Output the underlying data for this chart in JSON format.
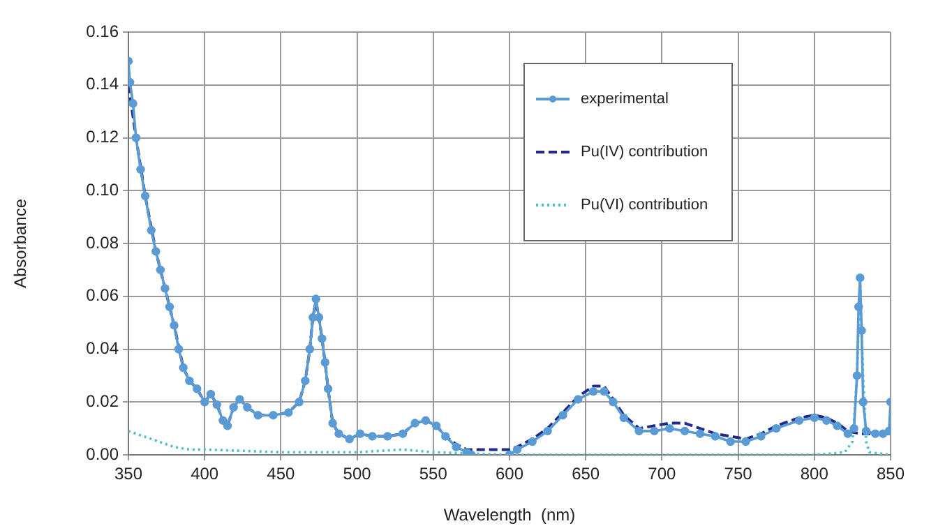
{
  "chart_data": {
    "type": "line",
    "xlabel": "Wavelength  (nm)",
    "ylabel": "Absorbance",
    "xlim": [
      350,
      850
    ],
    "xticks": [
      350,
      400,
      450,
      500,
      550,
      600,
      650,
      700,
      750,
      800,
      850
    ],
    "ylim": [
      0,
      0.16
    ],
    "yticks": [
      {
        "value": 0,
        "label": "0.00"
      },
      {
        "value": 0.02,
        "label": "0.02"
      },
      {
        "value": 0.04,
        "label": "0.04"
      },
      {
        "value": 0.06,
        "label": "0.06"
      },
      {
        "value": 0.08,
        "label": "0.08"
      },
      {
        "value": 0.1,
        "label": "0.10"
      },
      {
        "value": 0.12,
        "label": "0.12"
      },
      {
        "value": 0.14,
        "label": "0.14"
      },
      {
        "value": 0.16,
        "label": "0.16"
      }
    ],
    "grid": true,
    "legend": "top right",
    "series": [
      {
        "name": "experimental",
        "color": "#5b9bd5",
        "marker": "circle",
        "line_style": "solid",
        "x": [
          350,
          351,
          353,
          355,
          358,
          361,
          365,
          368,
          371,
          374,
          377,
          380,
          383,
          386,
          390,
          395,
          400,
          404,
          408,
          412,
          415,
          419,
          423,
          428,
          435,
          445,
          455,
          462,
          466,
          469,
          471,
          473,
          475,
          477,
          479,
          481,
          484,
          488,
          495,
          502,
          510,
          520,
          530,
          538,
          545,
          552,
          558,
          565,
          572,
          575,
          585,
          600,
          605,
          615,
          625,
          635,
          645,
          655,
          662,
          668,
          675,
          685,
          695,
          705,
          715,
          725,
          735,
          745,
          755,
          765,
          775,
          790,
          800,
          808,
          815,
          822,
          826,
          828,
          829,
          830,
          831,
          832,
          834,
          840,
          845,
          849,
          850
        ],
        "values": [
          0.149,
          0.141,
          0.133,
          0.12,
          0.108,
          0.098,
          0.085,
          0.077,
          0.07,
          0.063,
          0.056,
          0.049,
          0.04,
          0.033,
          0.028,
          0.025,
          0.02,
          0.023,
          0.019,
          0.013,
          0.011,
          0.018,
          0.021,
          0.018,
          0.015,
          0.015,
          0.016,
          0.02,
          0.028,
          0.04,
          0.052,
          0.059,
          0.052,
          0.044,
          0.035,
          0.025,
          0.012,
          0.008,
          0.006,
          0.008,
          0.007,
          0.007,
          0.008,
          0.012,
          0.013,
          0.011,
          0.007,
          0.003,
          0.001,
          0,
          null,
          0,
          0.002,
          0.005,
          0.009,
          0.015,
          0.021,
          0.024,
          0.024,
          0.02,
          0.014,
          0.009,
          0.009,
          0.01,
          0.009,
          0.008,
          0.007,
          0.005,
          0.005,
          0.007,
          0.01,
          0.013,
          0.014,
          0.013,
          0.011,
          0.008,
          0.01,
          0.03,
          0.056,
          0.067,
          0.047,
          0.02,
          0.009,
          0.008,
          0.008,
          0.009,
          0.02
        ]
      },
      {
        "name": "Pu(IV) contribution",
        "color": "#1f2a8c",
        "marker": "none",
        "line_style": "dashed",
        "x": [
          350,
          355,
          361,
          368,
          374,
          380,
          386,
          390,
          395,
          400,
          404,
          408,
          412,
          415,
          419,
          423,
          428,
          435,
          445,
          455,
          462,
          466,
          469,
          471,
          473,
          475,
          477,
          479,
          481,
          484,
          488,
          495,
          502,
          510,
          520,
          530,
          538,
          545,
          552,
          558,
          565,
          572,
          580,
          590,
          600,
          605,
          615,
          625,
          635,
          645,
          655,
          662,
          668,
          675,
          685,
          695,
          705,
          715,
          725,
          735,
          745,
          755,
          765,
          775,
          790,
          800,
          808,
          815,
          822,
          830,
          840,
          850
        ],
        "values": [
          0.14,
          0.12,
          0.098,
          0.077,
          0.063,
          0.049,
          0.033,
          0.028,
          0.025,
          0.02,
          0.023,
          0.019,
          0.013,
          0.011,
          0.018,
          0.021,
          0.018,
          0.015,
          0.015,
          0.016,
          0.02,
          0.028,
          0.04,
          0.052,
          0.058,
          0.052,
          0.044,
          0.035,
          0.025,
          0.012,
          0.008,
          0.006,
          0.008,
          0.007,
          0.007,
          0.008,
          0.012,
          0.013,
          0.011,
          0.007,
          0.004,
          0.002,
          0.002,
          0.002,
          0.002,
          0.003,
          0.006,
          0.01,
          0.016,
          0.022,
          0.026,
          0.026,
          0.021,
          0.015,
          0.01,
          0.011,
          0.012,
          0.012,
          0.01,
          0.008,
          0.007,
          0.006,
          0.008,
          0.011,
          0.014,
          0.015,
          0.014,
          0.012,
          0.009,
          0.008,
          0.008,
          0.008
        ]
      },
      {
        "name": "Pu(VI) contribution",
        "color": "#4dbfc6",
        "marker": "none",
        "line_style": "dotted",
        "x": [
          350,
          360,
          370,
          380,
          390,
          400,
          450,
          500,
          530,
          550,
          600,
          700,
          800,
          820,
          825,
          828,
          830,
          832,
          834,
          836,
          850
        ],
        "values": [
          0.009,
          0.007,
          0.005,
          0.003,
          0.002,
          0.002,
          0.001,
          0.001,
          0.002,
          0.001,
          0,
          0,
          0,
          0.001,
          0.005,
          0.03,
          0.066,
          0.03,
          0.005,
          0.001,
          0
        ]
      }
    ]
  }
}
